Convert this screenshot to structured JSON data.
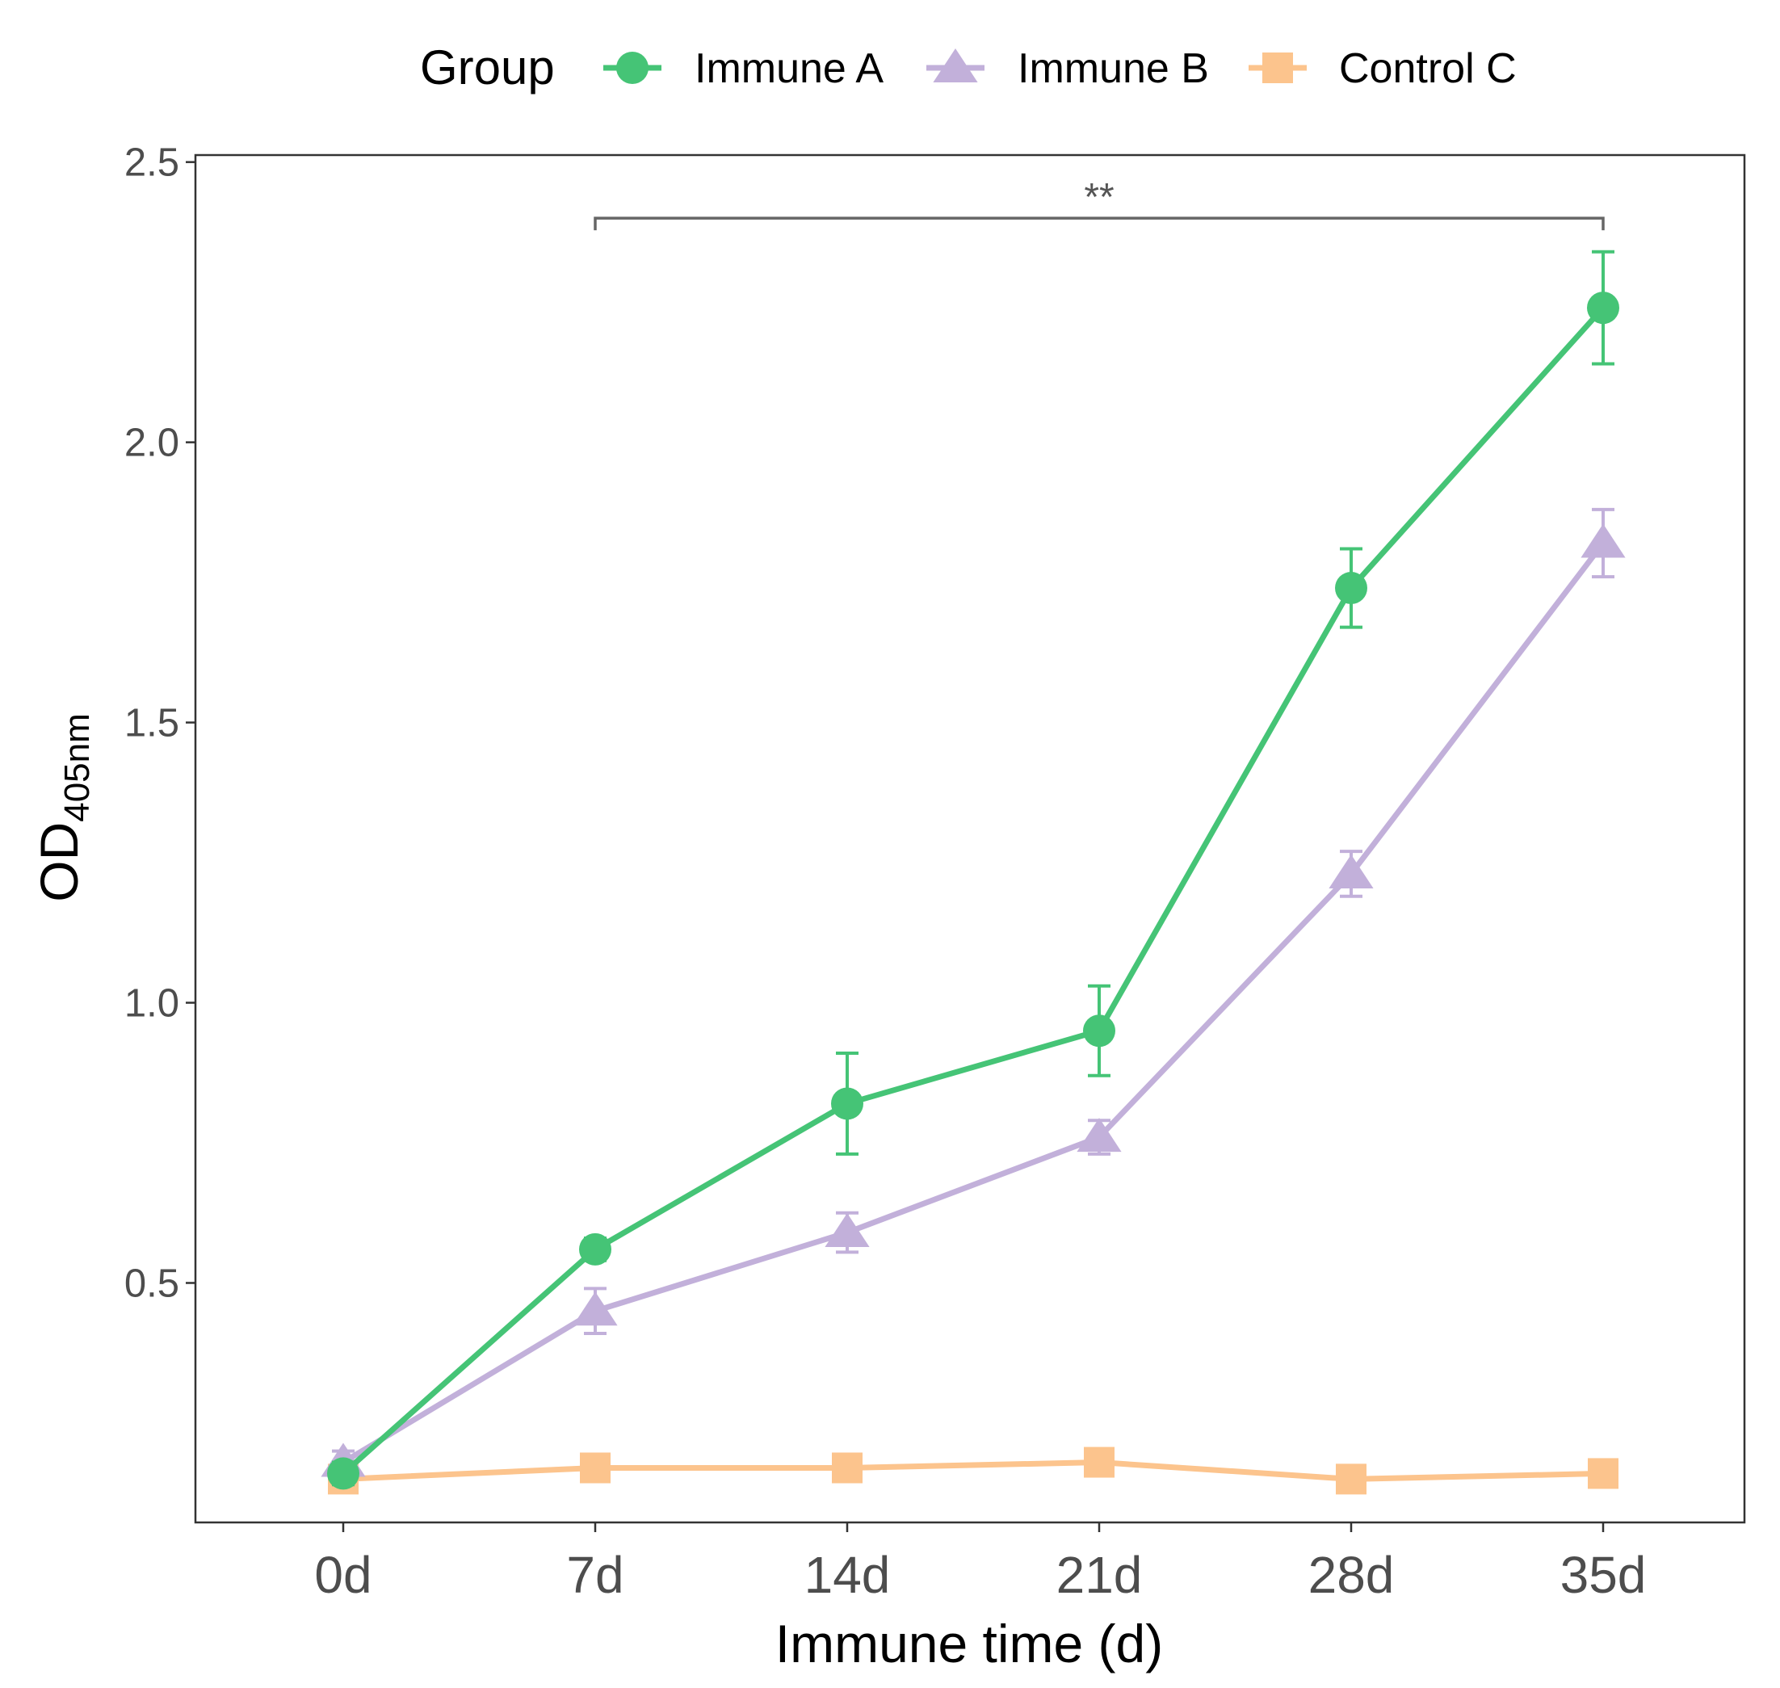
{
  "chart_data": {
    "type": "line",
    "title": "",
    "xlabel": "Immune time (d)",
    "ylabel": {
      "main": "OD",
      "subscript": "405nm"
    },
    "categories": [
      "0d",
      "7d",
      "14d",
      "21d",
      "28d",
      "35d"
    ],
    "ylim": [
      0.0727,
      2.5125
    ],
    "yticks": [
      0.5,
      1.0,
      1.5,
      2.0,
      2.5
    ],
    "ytick_labels": [
      "0.5",
      "1.0",
      "1.5",
      "2.0",
      "2.5"
    ],
    "grid": false,
    "legend": {
      "title": "Group",
      "position": "top"
    },
    "series": [
      {
        "name": "Immune A",
        "color": "#45c476",
        "marker": "circle",
        "values": [
          0.16,
          0.56,
          0.82,
          0.95,
          1.74,
          2.24
        ],
        "errors": [
          0.02,
          0.02,
          0.09,
          0.08,
          0.07,
          0.1
        ]
      },
      {
        "name": "Immune B",
        "color": "#c2b0da",
        "marker": "triangle",
        "values": [
          0.18,
          0.45,
          0.59,
          0.76,
          1.23,
          1.82
        ],
        "errors": [
          0.02,
          0.04,
          0.035,
          0.03,
          0.04,
          0.06
        ]
      },
      {
        "name": "Control C",
        "color": "#fcc48d",
        "marker": "square",
        "values": [
          0.15,
          0.17,
          0.17,
          0.18,
          0.15,
          0.16
        ],
        "errors": [
          0.01,
          0.01,
          0.01,
          0.01,
          0.01,
          0.01
        ]
      }
    ],
    "annotations": [
      {
        "text": "**",
        "type": "significance-bracket",
        "from": "7d",
        "to": "35d",
        "y": 2.4
      }
    ]
  }
}
